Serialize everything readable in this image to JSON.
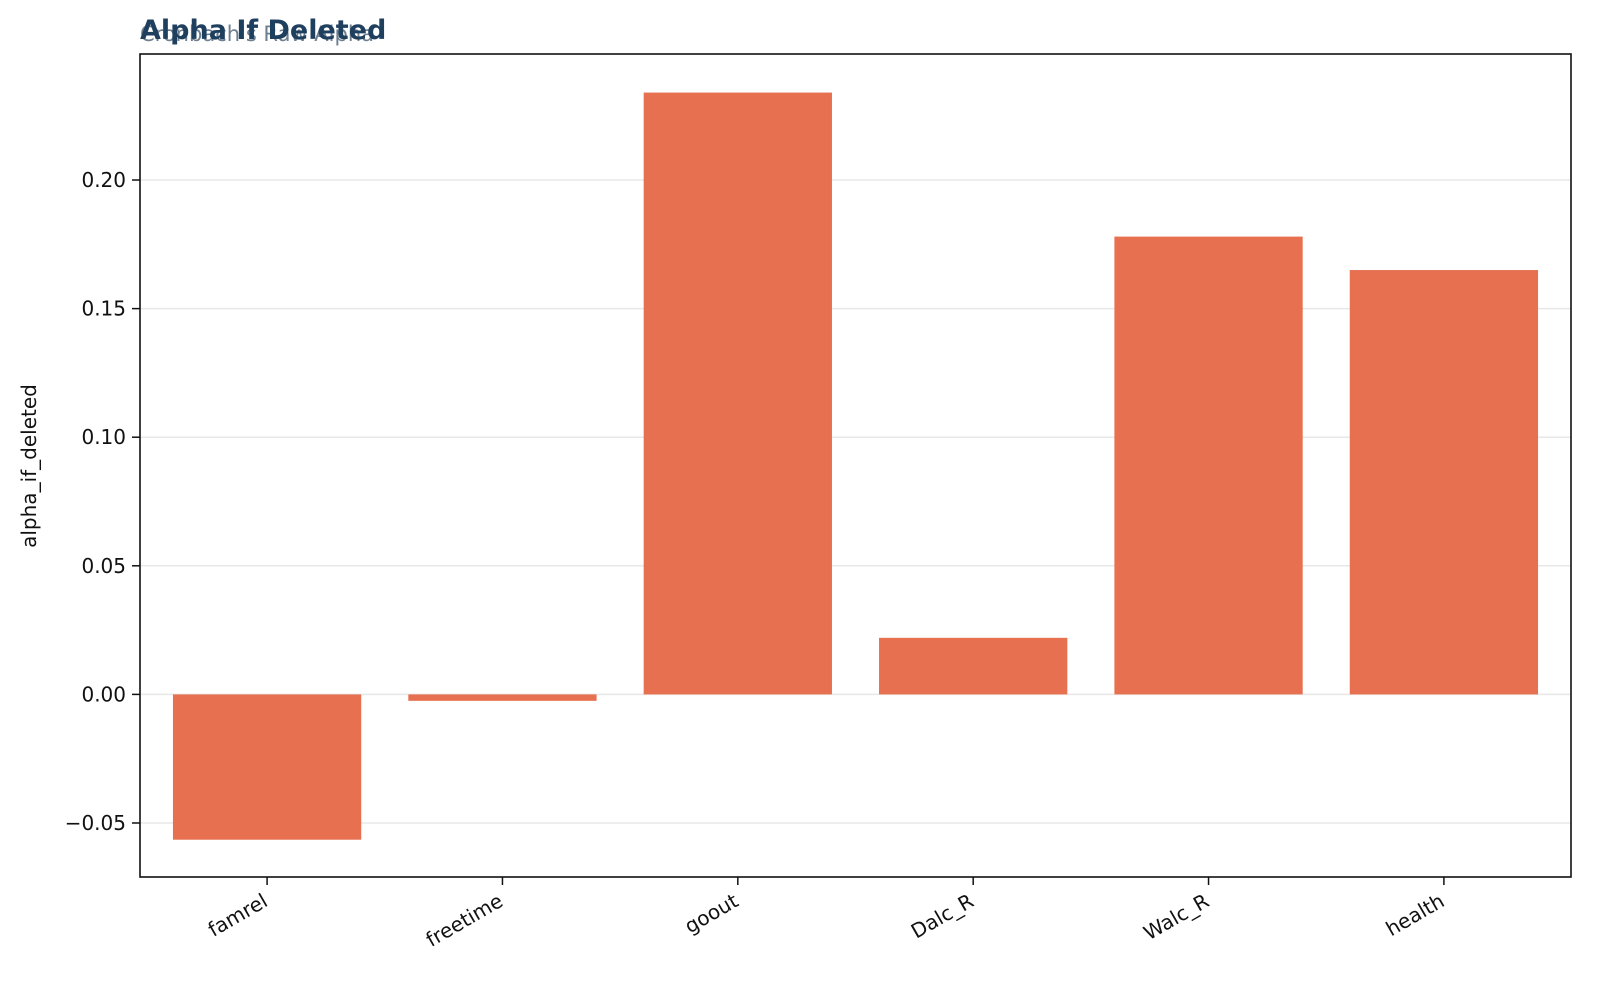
{
  "chart_data": {
    "type": "bar",
    "title": "Alpha If Deleted",
    "subtitle": "Cronbach's Raw Alpha",
    "xlabel": "",
    "ylabel": "alpha_if_deleted",
    "categories": [
      "famrel",
      "freetime",
      "goout",
      "Dalc_R",
      "Walc_R",
      "health"
    ],
    "values": [
      -0.0565,
      -0.0025,
      0.234,
      0.022,
      0.178,
      0.165
    ],
    "ylim": [
      -0.071,
      0.249
    ],
    "yticks": [
      -0.05,
      0.0,
      0.05,
      0.1,
      0.15,
      0.2
    ],
    "ytick_labels": [
      "−0.05",
      "0.00",
      "0.05",
      "0.10",
      "0.15",
      "0.20"
    ],
    "grid": true,
    "grid_axis": "y",
    "bar_color": "#e6704f",
    "title_color": "#1f3f5f",
    "subtitle_color": "#6e7f90"
  }
}
